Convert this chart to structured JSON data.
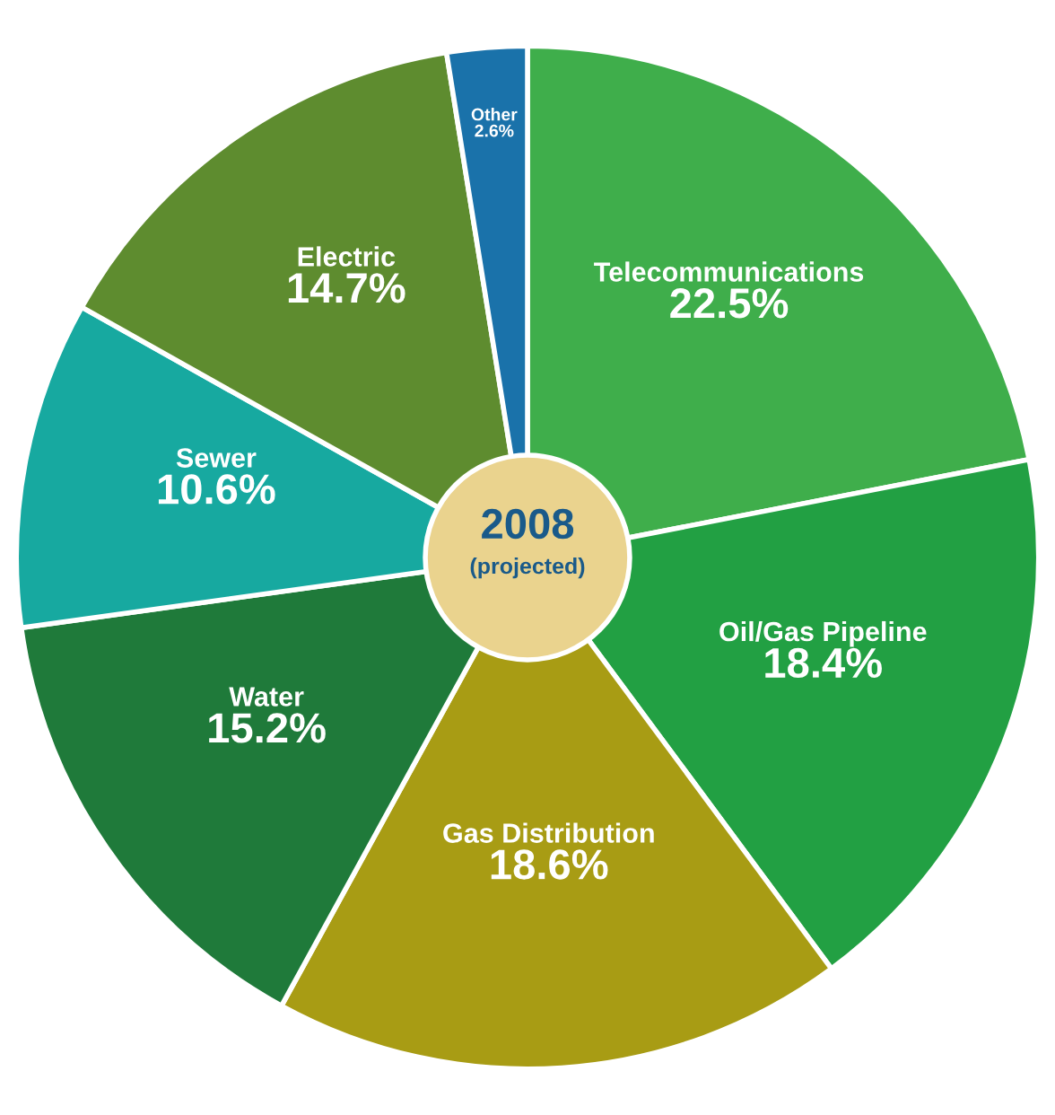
{
  "chart_data": {
    "type": "donut",
    "title": "2008",
    "subtitle": "(projected)",
    "categories": [
      "Telecommunications",
      "Oil/Gas Pipeline",
      "Gas Distribution",
      "Water",
      "Sewer",
      "Electric",
      "Other"
    ],
    "values": [
      22.5,
      18.4,
      18.6,
      15.2,
      10.6,
      14.7,
      2.6
    ],
    "value_labels": [
      "22.5%",
      "18.4%",
      "18.6%",
      "15.2%",
      "10.6%",
      "14.7%",
      "2.6%"
    ],
    "colors": [
      "#3fae4b",
      "#22a043",
      "#a89c14",
      "#1f7a3a",
      "#17a9a0",
      "#5e8c2f",
      "#1a72aa"
    ]
  }
}
